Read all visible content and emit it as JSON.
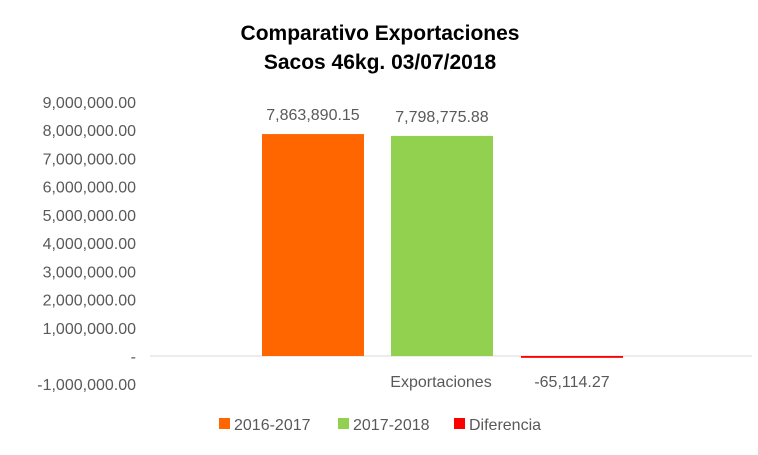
{
  "chart_data": {
    "type": "bar",
    "title": [
      "Comparativo  Exportaciones",
      "Sacos 46kg. 03/07/2018"
    ],
    "categories": [
      "Exportaciones"
    ],
    "series": [
      {
        "name": "2016-2017",
        "values": [
          7863890.15
        ],
        "label": "7,863,890.15",
        "color": "#FF6600"
      },
      {
        "name": "2017-2018",
        "values": [
          7798775.88
        ],
        "label": "7,798,775.88",
        "color": "#92D050"
      },
      {
        "name": "Diferencia",
        "values": [
          -65114.27
        ],
        "label": "-65,114.27",
        "color": "#FF0000"
      }
    ],
    "ylim": [
      -1000000,
      9000000
    ],
    "yticks": [
      9000000,
      8000000,
      7000000,
      6000000,
      5000000,
      4000000,
      3000000,
      2000000,
      1000000,
      0,
      -1000000
    ],
    "ytick_labels": [
      "9,000,000.00",
      "8,000,000.00",
      "7,000,000.00",
      "6,000,000.00",
      "5,000,000.00",
      "4,000,000.00",
      "3,000,000.00",
      "2,000,000.00",
      "1,000,000.00",
      "-",
      "-1,000,000.00"
    ],
    "legend_position": "bottom",
    "grid": false
  }
}
